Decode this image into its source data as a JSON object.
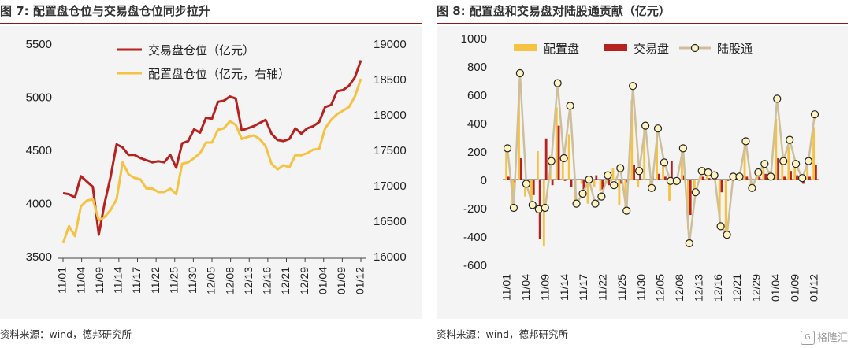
{
  "left_panel": {
    "figure_label": "图 7:",
    "title": "配置盘仓位与交易盘仓位同步拉升",
    "source": "资料来源：wind，德邦研究所"
  },
  "right_panel": {
    "figure_label": "图 8:",
    "title": "配置盘和交易盘对陆股通贡献（亿元）",
    "source": "资料来源：wind，德邦研究所"
  },
  "watermark": {
    "text": "格隆汇",
    "logo": "G"
  },
  "colors": {
    "red": "#b5221f",
    "gold": "#f5c242",
    "tan": "#cdbf9c",
    "rule": "#8a1a1a"
  },
  "chart_data": [
    {
      "type": "line",
      "x_ticks": [
        "11/01",
        "11/04",
        "11/09",
        "11/14",
        "11/17",
        "11/22",
        "11/25",
        "11/30",
        "12/05",
        "12/08",
        "12/13",
        "12/16",
        "12/21",
        "12/29",
        "01/04",
        "01/09",
        "01/12"
      ],
      "ylim_left": [
        3500,
        5500
      ],
      "yticks_left": [
        3500,
        4000,
        4500,
        5000,
        5500
      ],
      "ylim_right": [
        16000,
        19000
      ],
      "yticks_right": [
        16000,
        16500,
        17000,
        17500,
        18000,
        18500,
        19000
      ],
      "legend_position": "top-center",
      "series": [
        {
          "name": "交易盘仓位（亿元）",
          "axis": "left",
          "color": "#b5221f",
          "values": [
            4090,
            4080,
            4050,
            4250,
            4200,
            4150,
            3700,
            4000,
            4250,
            4550,
            4520,
            4450,
            4450,
            4420,
            4400,
            4380,
            4390,
            4380,
            4450,
            4330,
            4560,
            4580,
            4690,
            4660,
            4800,
            4790,
            4950,
            4960,
            5000,
            4980,
            4680,
            4700,
            4720,
            4750,
            4780,
            4650,
            4590,
            4580,
            4600,
            4700,
            4650,
            4700,
            4720,
            4760,
            4900,
            4920,
            5050,
            5060,
            5100,
            5180,
            5340
          ]
        },
        {
          "name": "配置盘仓位（亿元，右轴）",
          "axis": "right",
          "color": "#f5c242",
          "values": [
            16180,
            16420,
            16280,
            16700,
            16780,
            16800,
            16500,
            16550,
            16650,
            16800,
            17320,
            17150,
            17100,
            17080,
            16950,
            16950,
            16900,
            16900,
            16950,
            16870,
            17300,
            17320,
            17380,
            17450,
            17600,
            17600,
            17780,
            17800,
            17900,
            17850,
            17650,
            17680,
            17700,
            17650,
            17550,
            17300,
            17220,
            17280,
            17250,
            17420,
            17420,
            17450,
            17500,
            17510,
            17800,
            17920,
            18000,
            18050,
            18100,
            18250,
            18500
          ]
        }
      ]
    },
    {
      "type": "bar",
      "x_ticks": [
        "11/01",
        "11/04",
        "11/09",
        "11/14",
        "11/17",
        "11/22",
        "11/25",
        "11/30",
        "12/05",
        "12/08",
        "12/13",
        "12/16",
        "12/21",
        "12/29",
        "01/04",
        "01/09",
        "01/12"
      ],
      "ylim": [
        -600,
        1000
      ],
      "yticks": [
        -600,
        -400,
        -200,
        0,
        200,
        400,
        600,
        800,
        1000
      ],
      "legend_position": "top",
      "series": [
        {
          "name": "配置盘",
          "kind": "bar",
          "color": "#f5c242",
          "values": [
            200,
            -180,
            600,
            -120,
            -200,
            200,
            -470,
            170,
            510,
            150,
            320,
            -150,
            -30,
            -170,
            -50,
            -80,
            -30,
            80,
            -180,
            -200,
            560,
            -50,
            360,
            -60,
            320,
            120,
            -150,
            -40,
            200,
            -350,
            -80,
            60,
            60,
            30,
            -290,
            -380,
            30,
            20,
            270,
            -60,
            60,
            90,
            60,
            430,
            120,
            230,
            80,
            40,
            120,
            370
          ]
        },
        {
          "name": "交易盘",
          "kind": "bar",
          "color": "#b5221f",
          "values": [
            20,
            -20,
            150,
            -20,
            -110,
            -420,
            290,
            -40,
            380,
            -10,
            -50,
            0,
            -70,
            -30,
            30,
            -70,
            -40,
            0,
            -30,
            -20,
            100,
            120,
            0,
            30,
            40,
            20,
            130,
            0,
            30,
            -250,
            0,
            20,
            10,
            20,
            -90,
            -10,
            0,
            0,
            20,
            0,
            20,
            40,
            20,
            150,
            20,
            60,
            30,
            -30,
            20,
            100
          ]
        },
        {
          "name": "陆股通",
          "kind": "line_marker",
          "color": "#cdbf9c",
          "values": [
            220,
            -200,
            750,
            -30,
            -180,
            -210,
            -200,
            130,
            680,
            150,
            520,
            -170,
            -100,
            0,
            -170,
            -120,
            30,
            -40,
            80,
            -220,
            660,
            60,
            380,
            -60,
            360,
            120,
            -10,
            -10,
            220,
            -450,
            -90,
            60,
            50,
            30,
            -330,
            -390,
            20,
            20,
            270,
            -60,
            50,
            110,
            20,
            570,
            130,
            280,
            110,
            10,
            130,
            460
          ]
        }
      ]
    }
  ]
}
